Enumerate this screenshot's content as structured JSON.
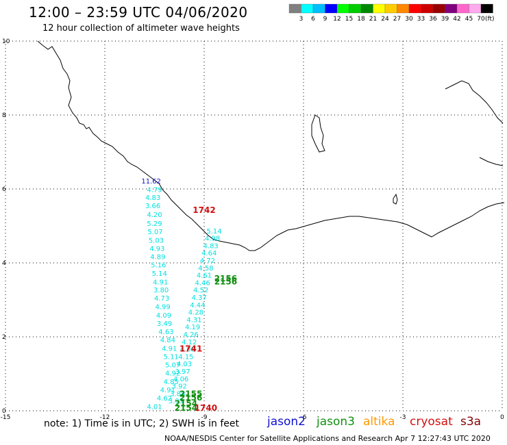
{
  "header": {
    "title": "12:00 – 23:59 UTC 04/06/2020",
    "subtitle": "12 hour collection of altimeter wave heights"
  },
  "footer": {
    "note": "note: 1) Time is in UTC; 2) SWH is in feet",
    "credit": "NOAA/NESDIS Center for Satellite Applications and Research   Apr  7 12:27:43 UTC 2020"
  },
  "satellites": [
    {
      "name": "jason2",
      "color": "#1010d0"
    },
    {
      "name": "jason3",
      "color": "#109010"
    },
    {
      "name": "altika",
      "color": "#ff9900"
    },
    {
      "name": "cryosat",
      "color": "#d01010"
    },
    {
      "name": "s3a",
      "color": "#800000"
    }
  ],
  "colorbar": {
    "colors": [
      "#808080",
      "#00ffff",
      "#00bfff",
      "#0000ff",
      "#00ff00",
      "#00cc00",
      "#008800",
      "#ffff00",
      "#ffcc00",
      "#ff8800",
      "#ff0000",
      "#cc0000",
      "#990000",
      "#800080",
      "#ff66cc",
      "#ffaaee",
      "#000000"
    ],
    "labels": [
      "3",
      "6",
      "9",
      "12",
      "15",
      "18",
      "21",
      "24",
      "27",
      "30",
      "33",
      "36",
      "39",
      "42",
      "45",
      "70"
    ],
    "unit": "(ft)"
  },
  "chart_data": {
    "type": "scatter",
    "xlim": [
      -15,
      0
    ],
    "ylim": [
      0,
      10
    ],
    "xticks": [
      -15,
      -12,
      -9,
      -6,
      -3,
      0
    ],
    "yticks": [
      0,
      2,
      4,
      6,
      8,
      10
    ],
    "grid": true,
    "series": [
      {
        "name": "jason2",
        "color": "#00e0e0",
        "points": [
          {
            "x": -10.6,
            "y": 6.15,
            "label": "11.62",
            "color": "#1010d0"
          },
          {
            "x": -10.5,
            "y": 5.92,
            "label": "4.79"
          },
          {
            "x": -10.55,
            "y": 5.7,
            "label": "4.83"
          },
          {
            "x": -10.55,
            "y": 5.48,
            "label": "3.66"
          },
          {
            "x": -10.5,
            "y": 5.24,
            "label": "4.20"
          },
          {
            "x": -10.5,
            "y": 5.0,
            "label": "5.29"
          },
          {
            "x": -10.48,
            "y": 4.78,
            "label": "5.07"
          },
          {
            "x": -10.45,
            "y": 4.55,
            "label": "5.03"
          },
          {
            "x": -10.42,
            "y": 4.32,
            "label": "4.93"
          },
          {
            "x": -10.4,
            "y": 4.1,
            "label": "4.89"
          },
          {
            "x": -10.38,
            "y": 3.88,
            "label": "5.16"
          },
          {
            "x": -10.35,
            "y": 3.65,
            "label": "5.14"
          },
          {
            "x": -10.32,
            "y": 3.42,
            "label": "4.91"
          },
          {
            "x": -10.3,
            "y": 3.2,
            "label": "3.80"
          },
          {
            "x": -10.28,
            "y": 2.98,
            "label": "4.73"
          },
          {
            "x": -10.25,
            "y": 2.75,
            "label": "4.99"
          },
          {
            "x": -10.22,
            "y": 2.52,
            "label": "4.09"
          },
          {
            "x": -10.2,
            "y": 2.3,
            "label": "3.49"
          },
          {
            "x": -10.15,
            "y": 2.07,
            "label": "4.63"
          },
          {
            "x": -10.1,
            "y": 1.85,
            "label": "4.84"
          },
          {
            "x": -10.05,
            "y": 1.62,
            "label": "4.91"
          },
          {
            "x": -10.0,
            "y": 1.4,
            "label": "5.11"
          },
          {
            "x": -9.95,
            "y": 1.18,
            "label": "5.07"
          },
          {
            "x": -9.95,
            "y": 0.95,
            "label": "4.92"
          },
          {
            "x": -10.0,
            "y": 0.72,
            "label": "4.85"
          },
          {
            "x": -10.1,
            "y": 0.5,
            "label": "4.91"
          },
          {
            "x": -10.2,
            "y": 0.28,
            "label": "4.62"
          },
          {
            "x": -10.5,
            "y": 0.05,
            "label": "4.01"
          }
        ]
      },
      {
        "name": "jason3",
        "color": "#00e0e0",
        "points": [
          {
            "x": -8.7,
            "y": 4.8,
            "label": "5.14"
          },
          {
            "x": -8.75,
            "y": 4.6,
            "label": "4.98"
          },
          {
            "x": -8.8,
            "y": 4.4,
            "label": "4.83"
          },
          {
            "x": -8.85,
            "y": 4.2,
            "label": "4.64"
          },
          {
            "x": -8.9,
            "y": 4.0,
            "label": "4.72"
          },
          {
            "x": -8.95,
            "y": 3.8,
            "label": "4.58"
          },
          {
            "x": -9.0,
            "y": 3.6,
            "label": "4.61"
          },
          {
            "x": -9.05,
            "y": 3.4,
            "label": "4.46"
          },
          {
            "x": -9.1,
            "y": 3.2,
            "label": "4.52"
          },
          {
            "x": -9.15,
            "y": 3.0,
            "label": "4.37"
          },
          {
            "x": -9.2,
            "y": 2.8,
            "label": "4.44"
          },
          {
            "x": -9.25,
            "y": 2.6,
            "label": "4.28"
          },
          {
            "x": -9.3,
            "y": 2.4,
            "label": "4.31"
          },
          {
            "x": -9.35,
            "y": 2.2,
            "label": "4.19"
          },
          {
            "x": -9.4,
            "y": 2.0,
            "label": "4.26"
          },
          {
            "x": -9.45,
            "y": 1.8,
            "label": "4.12"
          },
          {
            "x": -9.5,
            "y": 1.6,
            "label": "4.08"
          },
          {
            "x": -9.55,
            "y": 1.4,
            "label": "4.15"
          },
          {
            "x": -9.6,
            "y": 1.2,
            "label": "4.03"
          },
          {
            "x": -9.65,
            "y": 1.0,
            "label": "3.97"
          },
          {
            "x": -9.7,
            "y": 0.8,
            "label": "4.06"
          },
          {
            "x": -9.75,
            "y": 0.6,
            "label": "3.92"
          },
          {
            "x": -9.8,
            "y": 0.4,
            "label": "3.88"
          },
          {
            "x": -9.85,
            "y": 0.2,
            "label": "3.95"
          }
        ]
      }
    ],
    "pass_times": [
      {
        "x": -9.0,
        "y": 5.35,
        "label": "1742",
        "color": "#d01010"
      },
      {
        "x": -8.35,
        "y": 3.5,
        "label": "2156",
        "color": "#109010"
      },
      {
        "x": -8.35,
        "y": 3.42,
        "label": "2156",
        "color": "#109010"
      },
      {
        "x": -9.4,
        "y": 1.6,
        "label": "1741",
        "color": "#d01010"
      },
      {
        "x": -9.4,
        "y": 0.38,
        "label": "2155",
        "color": "#109010"
      },
      {
        "x": -9.4,
        "y": 0.28,
        "label": "2156",
        "color": "#109010"
      },
      {
        "x": -9.55,
        "y": 0.12,
        "label": "2154",
        "color": "#109010"
      },
      {
        "x": -9.55,
        "y": 0.0,
        "label": "2154",
        "color": "#109010"
      },
      {
        "x": -8.95,
        "y": 0.0,
        "label": "1740",
        "color": "#d01010"
      }
    ]
  }
}
